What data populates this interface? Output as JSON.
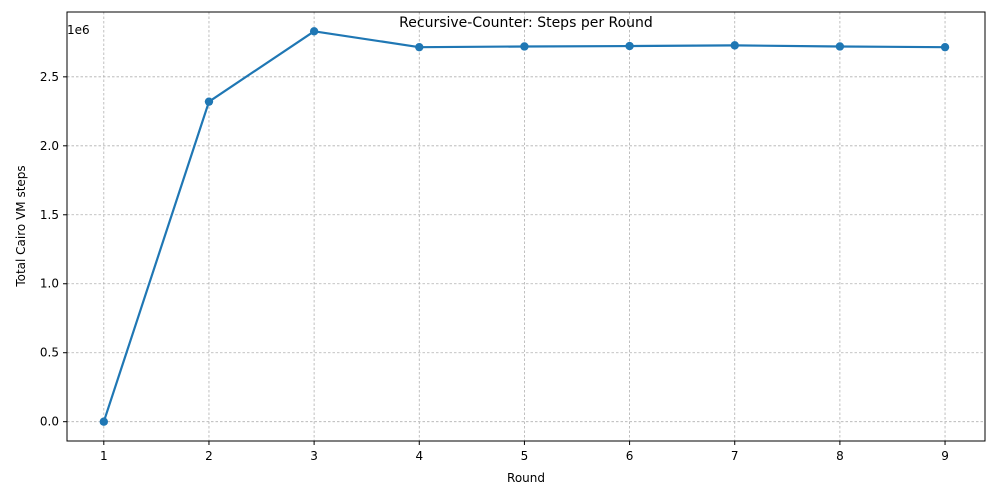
{
  "chart_data": {
    "type": "line",
    "title": "Recursive-Counter: Steps per Round",
    "xlabel": "Round",
    "ylabel": "Total Cairo VM steps",
    "y_offset_label": "1e6",
    "x": [
      1,
      2,
      3,
      4,
      5,
      6,
      7,
      8,
      9
    ],
    "series": [
      {
        "values": [
          0,
          2320000,
          2830000,
          2715000,
          2720000,
          2723000,
          2728000,
          2720000,
          2715000
        ],
        "color": "#1f77b4",
        "marker": "circle"
      }
    ],
    "xlim": [
      0.65,
      9.38
    ],
    "ylim": [
      -140000,
      2970000
    ],
    "x_ticks": [
      "1",
      "2",
      "3",
      "4",
      "5",
      "6",
      "7",
      "8",
      "9"
    ],
    "y_ticks": [
      {
        "value": 0,
        "label": "0.0"
      },
      {
        "value": 500000,
        "label": "0.5"
      },
      {
        "value": 1000000,
        "label": "1.0"
      },
      {
        "value": 1500000,
        "label": "1.5"
      },
      {
        "value": 2000000,
        "label": "2.0"
      },
      {
        "value": 2500000,
        "label": "2.5"
      }
    ],
    "grid": true
  }
}
